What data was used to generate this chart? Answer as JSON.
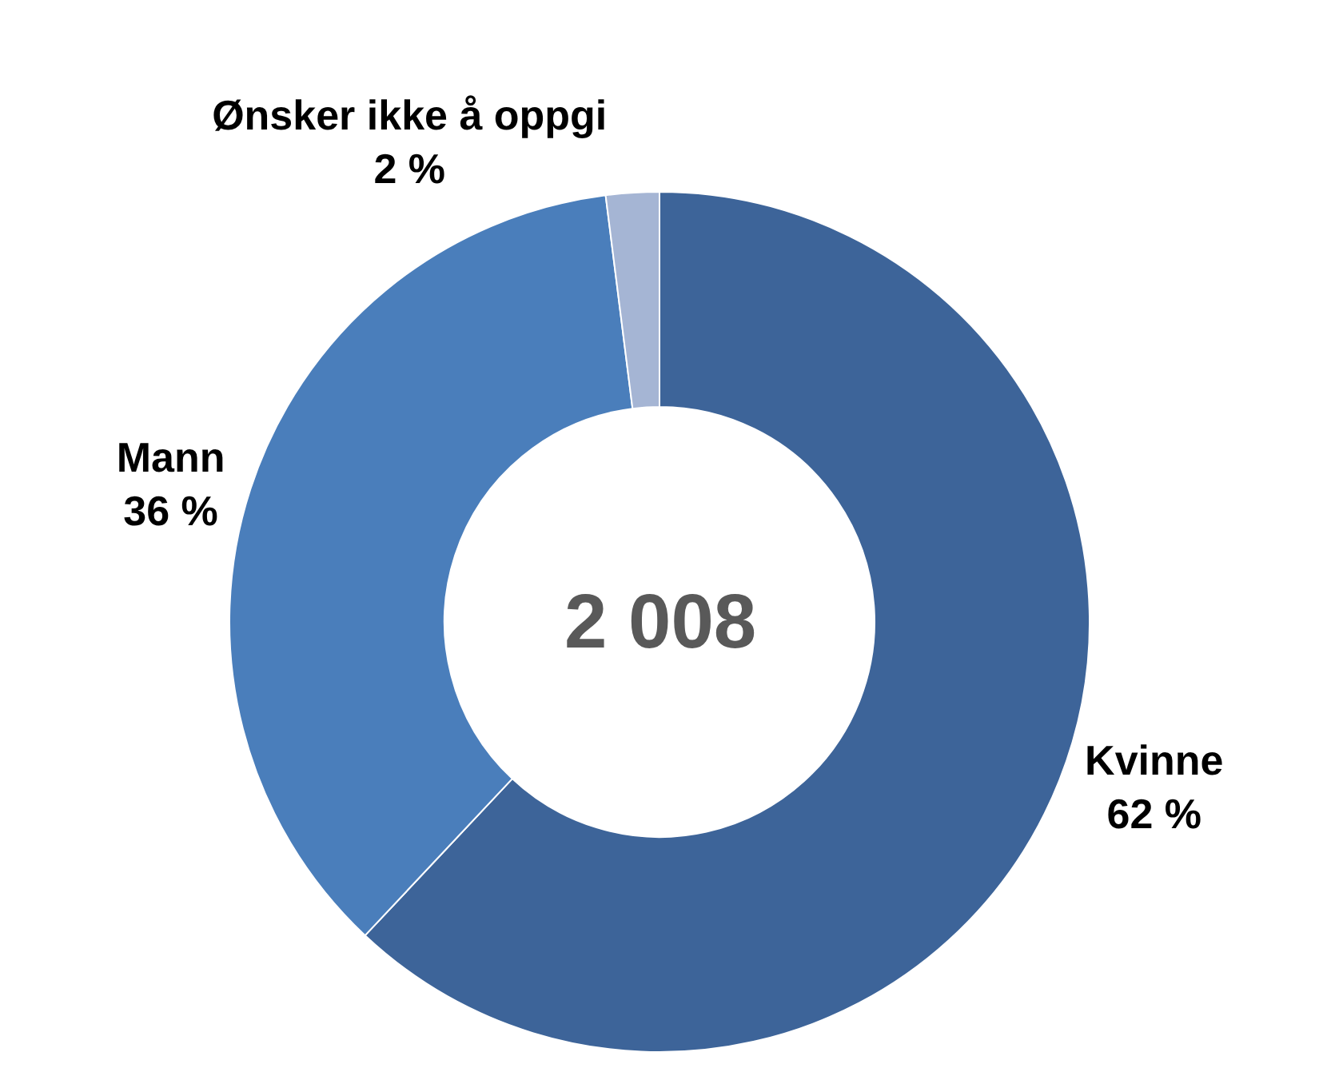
{
  "chart_data": {
    "type": "donut",
    "categories": [
      "Kvinne",
      "Mann",
      "Ønsker ikke å oppgi"
    ],
    "values": [
      62,
      36,
      2
    ],
    "value_labels": [
      "62 %",
      "36 %",
      "2 %"
    ],
    "colors": [
      "#3d6499",
      "#4a7ebb",
      "#a5b5d4"
    ],
    "annotations": [
      "2 008"
    ],
    "legend": false
  }
}
